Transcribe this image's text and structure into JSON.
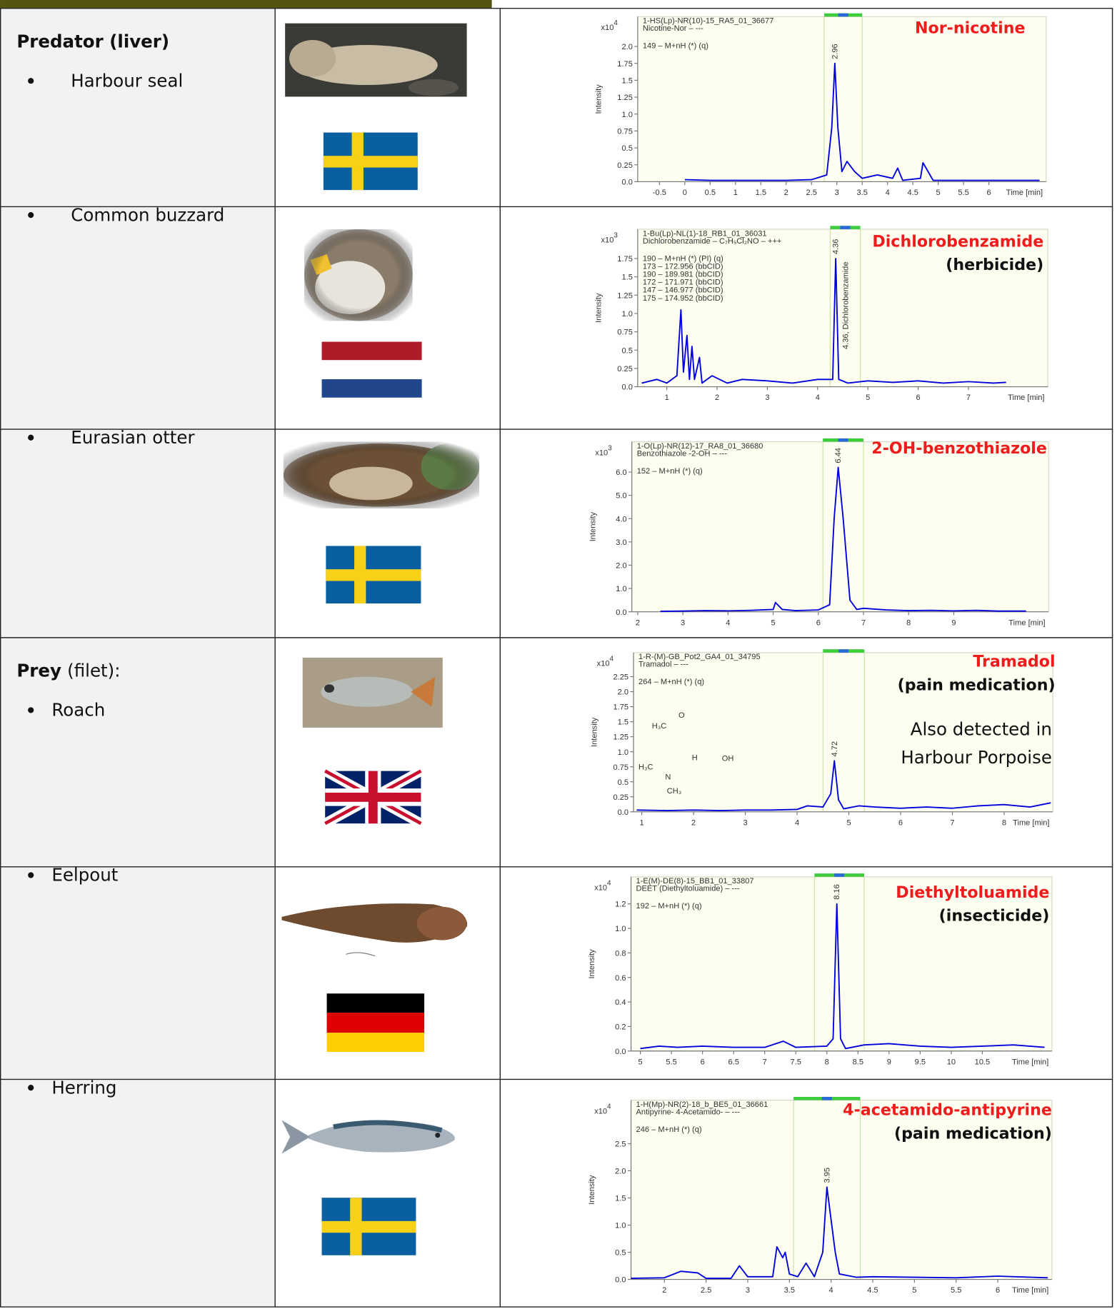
{
  "table": {
    "rows": [
      {
        "heading": {
          "bold": "Predator (liver)"
        },
        "species": "Harbour seal",
        "chart": {
          "type": "line",
          "header": [
            "1-HS(Lp)-NR(10)-15_RA5_01_36677",
            "Nicotine-Nor – ---"
          ],
          "ions": [
            {
              "label": "149 – M+nH (*) (q)",
              "color": "#2a2ae8"
            }
          ],
          "multiplier": {
            "base": "x10",
            "exponent": "4"
          },
          "y_label": "Intensity",
          "x_label": "Time [min]",
          "xlim": [
            -0.93,
            7.13
          ],
          "xticks": [
            -0.5,
            0,
            0.5,
            1,
            1.5,
            2,
            2.5,
            3,
            3.5,
            4,
            4.5,
            5,
            5.5,
            6
          ],
          "ylim": [
            0,
            2.44
          ],
          "yticks": [
            {
              "value": 0,
              "label": "0.0"
            },
            0.25,
            0.5,
            0.75,
            {
              "value": 1,
              "label": "1.0"
            },
            1.25,
            1.5,
            1.75,
            {
              "value": 2,
              "label": "2.0"
            }
          ],
          "integration_window": [
            2.75,
            3.5
          ],
          "peak_time": 2.96,
          "color": "#0000dd",
          "trace": {
            "x": [
              0,
              0.5,
              1,
              1.5,
              2,
              2.5,
              2.8,
              2.9,
              2.96,
              3.02,
              3.1,
              3.2,
              3.35,
              3.5,
              3.8,
              4.1,
              4.2,
              4.3,
              4.65,
              4.7,
              4.8,
              4.9,
              5.5,
              6,
              7
            ],
            "y": [
              0.03,
              0.02,
              0.02,
              0.02,
              0.02,
              0.03,
              0.1,
              0.8,
              1.75,
              0.8,
              0.15,
              0.3,
              0.15,
              0.05,
              0.1,
              0.05,
              0.2,
              0.02,
              0.05,
              0.28,
              0.15,
              0.02,
              0.02,
              0.02,
              0.02
            ]
          },
          "annotation": [
            "Nor-nicotine"
          ]
        }
      },
      {
        "species": "Common buzzard",
        "chart": {
          "type": "line",
          "header": [
            "1-Bu(Lp)-NL(1)-18_RB1_01_36031",
            "Dichlorobenzamide – C₇H₅Cl₂NO – +++"
          ],
          "ions": [
            {
              "label": "190 – M+nH (*) (PI) (q)",
              "color": "#2a2ae8"
            },
            {
              "label": "173 – 172.956 (bbCID)",
              "color": "#e08020"
            },
            {
              "label": "190 – 189.981 (bbCID)",
              "color": "#20b0e0"
            },
            {
              "label": "172 – 171.971 (bbCID)",
              "color": "#a02020"
            },
            {
              "label": "147 – 146.977 (bbCID)",
              "color": "#d030b0"
            },
            {
              "label": "175 – 174.952 (bbCID)",
              "color": "#30a030"
            }
          ],
          "multiplier": {
            "base": "x10",
            "exponent": "3"
          },
          "y_label": "Intensity",
          "x_label": "Time [min]",
          "xlim": [
            0.42,
            8.58
          ],
          "xticks": [
            1,
            2,
            3,
            4,
            5,
            6,
            7
          ],
          "ylim": [
            0,
            2.15
          ],
          "yticks": [
            {
              "value": 0,
              "label": "0.0"
            },
            0.25,
            0.5,
            0.75,
            {
              "value": 1,
              "label": "1.0"
            },
            1.25,
            1.5,
            1.75
          ],
          "integration_window": [
            4.25,
            4.85
          ],
          "peak_time": 4.36,
          "peak_name": "4.36, Dichlorobenzamide",
          "color": "#0000dd",
          "trace": {
            "x": [
              0.5,
              0.8,
              1,
              1.2,
              1.28,
              1.33,
              1.4,
              1.45,
              1.5,
              1.55,
              1.65,
              1.7,
              1.9,
              2.2,
              2.5,
              3,
              3.5,
              4,
              4.3,
              4.36,
              4.42,
              4.6,
              5,
              5.5,
              6,
              6.5,
              7,
              7.5,
              7.75
            ],
            "y": [
              0.05,
              0.1,
              0.05,
              0.15,
              1.05,
              0.2,
              0.7,
              0.1,
              0.55,
              0.1,
              0.4,
              0.05,
              0.15,
              0.05,
              0.1,
              0.08,
              0.05,
              0.1,
              0.1,
              1.75,
              0.1,
              0.05,
              0.08,
              0.06,
              0.08,
              0.05,
              0.07,
              0.05,
              0.06
            ]
          },
          "annotation": [
            "Dichlorobenzamide",
            "(herbicide)"
          ]
        }
      },
      {
        "species": "Eurasian otter",
        "chart": {
          "type": "line",
          "header": [
            "1-O(Lp)-NR(12)-17_RA8_01_36680",
            "Benzothiazole -2-OH – ---"
          ],
          "ions": [
            {
              "label": "152 – M+nH (*) (q)",
              "color": "#2a2ae8"
            }
          ],
          "multiplier": {
            "base": "x10",
            "exponent": "3"
          },
          "y_label": "Intensity",
          "x_label": "Time [min]",
          "xlim": [
            1.87,
            11.1
          ],
          "xticks": [
            2,
            3,
            4,
            5,
            6,
            7,
            8,
            9
          ],
          "ylim": [
            0,
            7.3
          ],
          "yticks": [
            {
              "value": 0,
              "label": "0.0"
            },
            {
              "value": 1,
              "label": "1.0"
            },
            {
              "value": 2,
              "label": "2.0"
            },
            {
              "value": 3,
              "label": "3.0"
            },
            {
              "value": 4,
              "label": "4.0"
            },
            {
              "value": 5,
              "label": "5.0"
            },
            {
              "value": 6,
              "label": "6.0"
            }
          ],
          "integration_window": [
            6.1,
            7.0
          ],
          "peak_time": 6.44,
          "color": "#0000dd",
          "trace": {
            "x": [
              2.5,
              3,
              3.5,
              4,
              4.5,
              5,
              5.05,
              5.2,
              5.5,
              6,
              6.25,
              6.35,
              6.44,
              6.55,
              6.7,
              6.85,
              7,
              7.5,
              8,
              8.5,
              9,
              9.5,
              10,
              10.6
            ],
            "y": [
              0.02,
              0.03,
              0.05,
              0.04,
              0.06,
              0.1,
              0.4,
              0.1,
              0.05,
              0.08,
              0.3,
              4,
              6.2,
              4,
              0.5,
              0.1,
              0.15,
              0.08,
              0.05,
              0.06,
              0.04,
              0.06,
              0.03,
              0.03
            ]
          },
          "annotation": [
            "2-OH-benzothiazole"
          ]
        }
      },
      {
        "heading": {
          "bold": "Prey",
          "rest": "(filet):"
        },
        "species": "Roach",
        "chart": {
          "type": "line",
          "header": [
            "1-R-(M)-GB_Pot2_GA4_01_34795",
            "Tramadol – ---"
          ],
          "ions": [
            {
              "label": "264 – M+nH (*) (q)",
              "color": "#2a2ae8"
            }
          ],
          "multiplier": {
            "base": "x10",
            "exponent": "4"
          },
          "y_label": "Intensity",
          "x_label": "Time [min]",
          "xlim": [
            0.84,
            8.94
          ],
          "xticks": [
            1,
            2,
            3,
            4,
            5,
            6,
            7,
            8
          ],
          "ylim": [
            0,
            2.65
          ],
          "yticks": [
            {
              "value": 0,
              "label": "0.0"
            },
            0.25,
            0.5,
            0.75,
            {
              "value": 1,
              "label": "1.0"
            },
            1.25,
            1.5,
            1.75,
            {
              "value": 2,
              "label": "2.0"
            },
            2.25
          ],
          "integration_window": [
            4.5,
            5.3
          ],
          "peak_time": 4.72,
          "color": "#0000dd",
          "trace": {
            "x": [
              0.9,
              1.5,
              2,
              2.5,
              3,
              3.5,
              4,
              4.2,
              4.5,
              4.65,
              4.72,
              4.8,
              4.9,
              5.2,
              5.5,
              6,
              6.5,
              7,
              7.5,
              8,
              8.5,
              8.9
            ],
            "y": [
              0.03,
              0.02,
              0.03,
              0.02,
              0.03,
              0.03,
              0.04,
              0.1,
              0.08,
              0.3,
              0.85,
              0.2,
              0.05,
              0.1,
              0.08,
              0.06,
              0.08,
              0.06,
              0.1,
              0.12,
              0.08,
              0.15
            ]
          },
          "structure_labels": [
            "H₃C",
            "O",
            "H",
            "OH",
            "H₃C",
            "N",
            "CH₃"
          ],
          "annotation": [
            "Tramadol",
            "(pain medication)"
          ],
          "note": [
            "Also detected in",
            "Harbour Porpoise"
          ]
        }
      },
      {
        "species": "Eelpout",
        "chart": {
          "type": "line",
          "header": [
            "1-E(M)-DE(8)-15_BB1_01_33807",
            "DEET (Diethyltoluamide) – ---"
          ],
          "ions": [
            {
              "label": "192 – M+nH (*) (q)",
              "color": "#2a2ae8"
            }
          ],
          "multiplier": {
            "base": "x10",
            "exponent": "4"
          },
          "y_label": "Intensity",
          "x_label": "Time [min]",
          "xlim": [
            4.85,
            11.62
          ],
          "xticks": [
            5,
            5.5,
            6,
            6.5,
            7,
            7.5,
            8,
            8.5,
            9,
            9.5,
            10,
            10.5
          ],
          "ylim": [
            0,
            1.42
          ],
          "yticks": [
            {
              "value": 0,
              "label": "0.0"
            },
            0.2,
            0.4,
            0.6,
            0.8,
            {
              "value": 1,
              "label": "1.0"
            },
            1.2
          ],
          "integration_window": [
            7.8,
            8.6
          ],
          "peak_time": 8.16,
          "color": "#0000dd",
          "trace": {
            "x": [
              5,
              5.3,
              5.6,
              6,
              6.5,
              7,
              7.3,
              7.5,
              8,
              8.1,
              8.16,
              8.22,
              8.3,
              8.6,
              9,
              9.5,
              10,
              10.5,
              11,
              11.5
            ],
            "y": [
              0.02,
              0.04,
              0.03,
              0.04,
              0.03,
              0.03,
              0.08,
              0.03,
              0.04,
              0.1,
              1.2,
              0.1,
              0.02,
              0.05,
              0.06,
              0.04,
              0.03,
              0.04,
              0.05,
              0.03
            ]
          },
          "annotation": [
            "Diethyltoluamide",
            "(insecticide)"
          ]
        }
      },
      {
        "species": "Herring",
        "chart": {
          "type": "line",
          "header": [
            "1-H(Mp)-NR(2)-18_b_BE5_01_36661",
            "Antipyrine- 4-Acetamido- – ---"
          ],
          "ions": [
            {
              "label": "246 – M+nH (*) (q)",
              "color": "#2a2ae8"
            }
          ],
          "multiplier": {
            "base": "x10",
            "exponent": "4"
          },
          "y_label": "Intensity",
          "x_label": "Time [min]",
          "xlim": [
            1.6,
            6.65
          ],
          "xticks": [
            2,
            2.5,
            3,
            3.5,
            4,
            4.5,
            5,
            5.5,
            6
          ],
          "ylim": [
            0,
            3.3
          ],
          "yticks": [
            {
              "value": 0,
              "label": "0.0"
            },
            0.5,
            {
              "value": 1,
              "label": "1.0"
            },
            1.5,
            {
              "value": 2,
              "label": "2.0"
            },
            2.5
          ],
          "integration_window": [
            3.55,
            4.35
          ],
          "peak_time": 3.95,
          "color": "#0000dd",
          "trace": {
            "x": [
              1.6,
              2,
              2.2,
              2.4,
              2.5,
              2.8,
              2.9,
              3,
              3.3,
              3.35,
              3.42,
              3.45,
              3.5,
              3.6,
              3.7,
              3.8,
              3.9,
              3.95,
              4.05,
              4.1,
              4.3,
              4.5,
              5,
              5.5,
              6,
              6.6
            ],
            "y": [
              0.02,
              0.03,
              0.15,
              0.12,
              0.02,
              0.02,
              0.25,
              0.05,
              0.05,
              0.6,
              0.4,
              0.5,
              0.1,
              0.05,
              0.3,
              0.05,
              0.5,
              1.7,
              0.5,
              0.1,
              0.04,
              0.05,
              0.04,
              0.03,
              0.06,
              0.03
            ]
          },
          "annotation": [
            "4-acetamido-antipyrine",
            "(pain medication)"
          ]
        }
      }
    ]
  }
}
